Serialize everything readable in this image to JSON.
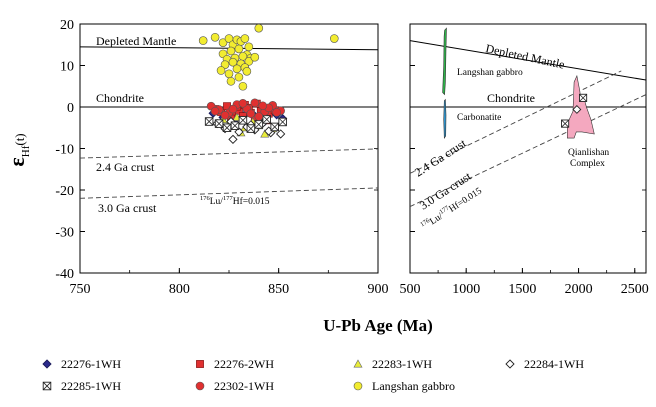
{
  "chart_data": [
    {
      "type": "scatter",
      "xlim": [
        750,
        900
      ],
      "ylim": [
        -40,
        20
      ],
      "x_ticks": [
        "750",
        "800",
        "850",
        "900"
      ],
      "y_ticks": [
        "20",
        "10",
        "0",
        "-10",
        "-20",
        "-30",
        "-40"
      ],
      "ylabel": "εHf(t)",
      "reference_lines": [
        {
          "label": "Depleted Mantle",
          "style": "solid",
          "points": [
            [
              750,
              14.5
            ],
            [
              900,
              13.8
            ]
          ]
        },
        {
          "label": "Chondrite",
          "style": "solid",
          "points": [
            [
              750,
              0
            ],
            [
              900,
              0
            ]
          ]
        },
        {
          "label": "2.4 Ga crust",
          "style": "dashed",
          "points": [
            [
              750,
              -12.3
            ],
            [
              900,
              -10.1
            ]
          ]
        },
        {
          "label": "3.0 Ga crust",
          "style": "dashed",
          "points": [
            [
              750,
              -22.0
            ],
            [
              900,
              -19.5
            ]
          ]
        }
      ],
      "annotation": {
        "prefix": "176",
        "a": "Lu/",
        "sup": "177",
        "b": "Hf=0.015"
      },
      "series": [
        {
          "name": "22276-1WH",
          "marker": "diamond",
          "color": "#2b2a8c",
          "x": [
            817,
            822,
            828,
            833,
            838,
            843,
            849,
            852,
            826,
            841
          ],
          "y": [
            -1.5,
            -2.5,
            -3.0,
            -1.8,
            -2.2,
            -3.5,
            -1.9,
            -2.8,
            -4.0,
            -2.0
          ]
        },
        {
          "name": "22276-2WH",
          "marker": "square",
          "color": "#e03030",
          "x": [
            818,
            821,
            824,
            827,
            830,
            833,
            836,
            839,
            842,
            845,
            848,
            826,
            832,
            838,
            844,
            829,
            835,
            841
          ],
          "y": [
            -0.5,
            -1.2,
            0.2,
            -1.8,
            -0.9,
            0.5,
            -1.4,
            0.8,
            -0.3,
            -1.6,
            -0.8,
            -2.8,
            -2.2,
            -2.5,
            -3.2,
            0.1,
            -0.2,
            -1.0
          ]
        },
        {
          "name": "22283-1WH",
          "marker": "triangle",
          "color": "#e8ec3a",
          "x": [
            822,
            825,
            829,
            833,
            837,
            840,
            844,
            847,
            831,
            843
          ],
          "y": [
            -3.0,
            -4.2,
            -2.5,
            -5.0,
            -3.6,
            -4.5,
            -2.8,
            -5.2,
            -6.2,
            -6.5
          ]
        },
        {
          "name": "22284-1WH",
          "marker": "diamond-open",
          "color": "#ffffff",
          "x": [
            819,
            823,
            826,
            830,
            834,
            838,
            842,
            846,
            851,
            827,
            836,
            845
          ],
          "y": [
            -4.0,
            -5.2,
            -3.5,
            -6.0,
            -4.8,
            -5.5,
            -3.9,
            -6.2,
            -6.5,
            -7.8,
            -4.3,
            -5.8
          ]
        },
        {
          "name": "22285-1WH",
          "marker": "square-x",
          "color": "#ffffff",
          "x": [
            815,
            820,
            824,
            828,
            832,
            836,
            840,
            844,
            848,
            852
          ],
          "y": [
            -3.5,
            -4.0,
            -5.0,
            -4.5,
            -3.2,
            -5.2,
            -4.2,
            -3.0,
            -4.8,
            -3.6
          ]
        },
        {
          "name": "22302-1WH",
          "marker": "circle",
          "color": "#e03030",
          "x": [
            816,
            820,
            825,
            829,
            834,
            838,
            843,
            847,
            851,
            823,
            832,
            840,
            845,
            827,
            836,
            849,
            818,
            842
          ],
          "y": [
            0.2,
            -0.6,
            -1.4,
            0.6,
            -0.4,
            1.0,
            -1.1,
            0.4,
            -0.9,
            -2.0,
            0.9,
            -2.3,
            -0.2,
            -0.5,
            -1.6,
            -1.3,
            -1.0,
            0.3
          ]
        },
        {
          "name": "Langshan gabbro",
          "marker": "circle",
          "color": "#f2ec30",
          "x": [
            812,
            818,
            822,
            825,
            827,
            829,
            831,
            833,
            835,
            822,
            826,
            830,
            834,
            824,
            828,
            832,
            836,
            823,
            827,
            831,
            835,
            829,
            833,
            821,
            825,
            830,
            834,
            838,
            826,
            832,
            840,
            878
          ],
          "y": [
            16.0,
            16.8,
            15.5,
            16.5,
            15.0,
            16.2,
            15.8,
            16.5,
            14.5,
            12.8,
            13.5,
            14.0,
            12.6,
            11.5,
            11.8,
            12.2,
            11.8,
            10.2,
            10.8,
            10.4,
            11.0,
            9.2,
            9.5,
            8.8,
            8.0,
            7.2,
            8.6,
            12.0,
            6.2,
            5.0,
            19.0,
            16.5
          ]
        }
      ]
    },
    {
      "type": "area",
      "xlim": [
        500,
        2600
      ],
      "ylim": [
        -40,
        20
      ],
      "x_ticks": [
        "500",
        "1000",
        "1500",
        "2000",
        "2500"
      ],
      "reference_lines": [
        {
          "label": "Depleted Mantle",
          "style": "solid",
          "points": [
            [
              500,
              16.0
            ],
            [
              2600,
              6.5
            ]
          ]
        },
        {
          "label": "Chondrite",
          "style": "solid",
          "points": [
            [
              500,
              0
            ],
            [
              2600,
              0
            ]
          ]
        },
        {
          "label": "2.4 Ga crust",
          "style": "dashed",
          "points": [
            [
              500,
              -16.0
            ],
            [
              2380,
              8.7
            ]
          ]
        },
        {
          "label": "3.0 Ga crust",
          "style": "dashed",
          "points": [
            [
              500,
              -24.0
            ],
            [
              2600,
              3.0
            ]
          ]
        }
      ],
      "annotation": {
        "prefix": "176",
        "a": "Lu/",
        "sup": "177",
        "b": "Hf=0.015"
      },
      "fields": [
        {
          "label": "Langshan gabbro",
          "color": "#2eb34a",
          "polygon": [
            [
              790,
              3.5
            ],
            [
              800,
              10.0
            ],
            [
              803,
              17.0
            ],
            [
              808,
              18.5
            ],
            [
              825,
              19.0
            ],
            [
              820,
              14.0
            ],
            [
              815,
              6.0
            ],
            [
              808,
              3.0
            ]
          ]
        },
        {
          "label": "Carbonatite",
          "color": "#2e98d4",
          "polygon": [
            [
              805,
              -7.5
            ],
            [
              800,
              -3.0
            ],
            [
              805,
              1.5
            ],
            [
              815,
              1.8
            ],
            [
              820,
              -2.0
            ],
            [
              818,
              -7.0
            ]
          ]
        },
        {
          "label": "Qianlishan\nComplex",
          "color": "#f4a8bf",
          "polygon": [
            [
              1900,
              -7.5
            ],
            [
              1900,
              -4.0
            ],
            [
              1950,
              -1.0
            ],
            [
              1960,
              6.0
            ],
            [
              1985,
              7.5
            ],
            [
              2010,
              4.0
            ],
            [
              2020,
              2.0
            ],
            [
              2045,
              2.5
            ],
            [
              2070,
              0.0
            ],
            [
              2110,
              -3.0
            ],
            [
              2140,
              -6.5
            ],
            [
              2030,
              -6.0
            ],
            [
              1980,
              -6.0
            ],
            [
              1960,
              -7.5
            ]
          ]
        }
      ],
      "markers": [
        {
          "marker": "square-x",
          "x": 1880,
          "y": -4.0
        },
        {
          "marker": "square-x",
          "x": 2040,
          "y": 2.2
        },
        {
          "marker": "diamond-open",
          "x": 1985,
          "y": -0.6
        }
      ]
    }
  ],
  "xlabel": "U-Pb Age (Ma)",
  "legend": [
    {
      "label": "22276-1WH",
      "marker": "diamond",
      "color": "#2b2a8c"
    },
    {
      "label": "22276-2WH",
      "marker": "square",
      "color": "#e03030"
    },
    {
      "label": "22283-1WH",
      "marker": "triangle",
      "color": "#e8ec3a"
    },
    {
      "label": "22284-1WH",
      "marker": "diamond-open",
      "color": "#ffffff"
    },
    {
      "label": "22285-1WH",
      "marker": "square-x",
      "color": "#ffffff"
    },
    {
      "label": "22302-1WH",
      "marker": "circle",
      "color": "#e03030"
    },
    {
      "label": "Langshan gabbro",
      "marker": "circle",
      "color": "#f2ec30"
    }
  ]
}
